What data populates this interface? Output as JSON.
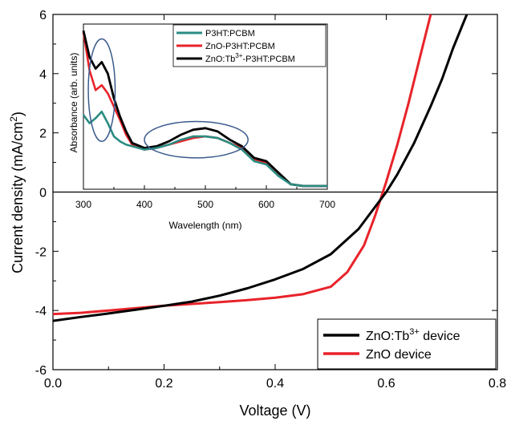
{
  "chart_data": [
    {
      "type": "line",
      "xlabel": "Voltage (V)",
      "ylabel_main": "Current density (mA/cm",
      "ylabel_sup": "2",
      "ylabel_close": ")",
      "xlim": [
        0.0,
        0.8
      ],
      "ylim": [
        -6,
        6
      ],
      "xticks": [
        "0.0",
        "0.2",
        "0.4",
        "0.6",
        "0.8"
      ],
      "yticks": [
        "-6",
        "-4",
        "-2",
        "0",
        "2",
        "4",
        "6"
      ],
      "legend_position": "bottom-right",
      "series": [
        {
          "name_main": "ZnO:Tb",
          "name_sup": "3+",
          "name_tail": " device",
          "color": "#000000",
          "x": [
            0.0,
            0.05,
            0.1,
            0.15,
            0.2,
            0.25,
            0.3,
            0.35,
            0.4,
            0.45,
            0.5,
            0.55,
            0.58,
            0.6,
            0.62,
            0.65,
            0.68,
            0.7,
            0.72,
            0.745
          ],
          "y": [
            -4.35,
            -4.22,
            -4.1,
            -3.97,
            -3.84,
            -3.7,
            -3.5,
            -3.25,
            -2.95,
            -2.6,
            -2.1,
            -1.25,
            -0.5,
            0.0,
            0.6,
            1.65,
            2.9,
            3.8,
            4.85,
            6.0
          ]
        },
        {
          "name": "ZnO device",
          "color": "#e8232a",
          "x": [
            0.0,
            0.05,
            0.1,
            0.15,
            0.2,
            0.25,
            0.3,
            0.35,
            0.4,
            0.45,
            0.5,
            0.53,
            0.56,
            0.58,
            0.6,
            0.62,
            0.64,
            0.66,
            0.68
          ],
          "y": [
            -4.12,
            -4.08,
            -4.0,
            -3.92,
            -3.84,
            -3.78,
            -3.72,
            -3.65,
            -3.57,
            -3.45,
            -3.2,
            -2.7,
            -1.8,
            -0.8,
            0.35,
            1.6,
            3.0,
            4.5,
            6.0
          ]
        }
      ]
    },
    {
      "type": "line",
      "inset": true,
      "xlabel": "Wavelength (nm)",
      "ylabel": "Absorbance (arb. units)",
      "xlim": [
        300,
        700
      ],
      "ylim": [
        0,
        1
      ],
      "xticks": [
        "300",
        "400",
        "500",
        "600",
        "700"
      ],
      "legend_position": "top-right",
      "series": [
        {
          "name": "P3HT:PCBM",
          "color": "#2a8c82",
          "x": [
            300,
            310,
            320,
            330,
            340,
            350,
            360,
            370,
            380,
            400,
            420,
            440,
            460,
            480,
            500,
            520,
            540,
            560,
            580,
            600,
            620,
            640,
            660,
            680,
            700
          ],
          "y": [
            0.45,
            0.4,
            0.43,
            0.47,
            0.4,
            0.32,
            0.29,
            0.27,
            0.26,
            0.24,
            0.25,
            0.27,
            0.3,
            0.32,
            0.32,
            0.31,
            0.28,
            0.24,
            0.17,
            0.15,
            0.08,
            0.03,
            0.02,
            0.02,
            0.02
          ]
        },
        {
          "name": "ZnO-P3HT:PCBM",
          "color": "#e8232a",
          "x": [
            300,
            310,
            320,
            330,
            340,
            350,
            360,
            370,
            380,
            400,
            420,
            440,
            460,
            480,
            500,
            520,
            540,
            560,
            580,
            600,
            620,
            640,
            660,
            680,
            700
          ],
          "y": [
            0.95,
            0.72,
            0.6,
            0.63,
            0.58,
            0.5,
            0.42,
            0.33,
            0.27,
            0.24,
            0.25,
            0.27,
            0.29,
            0.31,
            0.32,
            0.31,
            0.28,
            0.25,
            0.18,
            0.16,
            0.09,
            0.03,
            0.02,
            0.02,
            0.02
          ]
        },
        {
          "name_main": "ZnO:Tb",
          "name_sup": "3+",
          "name_tail": "-P3HT:PCBM",
          "color": "#000000",
          "x": [
            300,
            310,
            320,
            330,
            340,
            350,
            360,
            370,
            380,
            400,
            420,
            440,
            460,
            480,
            500,
            520,
            540,
            560,
            580,
            600,
            620,
            640,
            660,
            680,
            700
          ],
          "y": [
            0.96,
            0.8,
            0.73,
            0.77,
            0.7,
            0.55,
            0.44,
            0.35,
            0.28,
            0.25,
            0.26,
            0.29,
            0.33,
            0.36,
            0.37,
            0.35,
            0.3,
            0.26,
            0.19,
            0.17,
            0.1,
            0.03,
            0.02,
            0.02,
            0.02
          ]
        }
      ],
      "annotations": [
        {
          "shape": "ellipse",
          "cx": 330,
          "cy": 0.6,
          "rx": 22,
          "ry": 0.31,
          "color": "#3a5a8c"
        },
        {
          "shape": "ellipse",
          "cx": 485,
          "cy": 0.3,
          "rx": 85,
          "ry": 0.11,
          "color": "#3a5a8c"
        }
      ]
    }
  ]
}
